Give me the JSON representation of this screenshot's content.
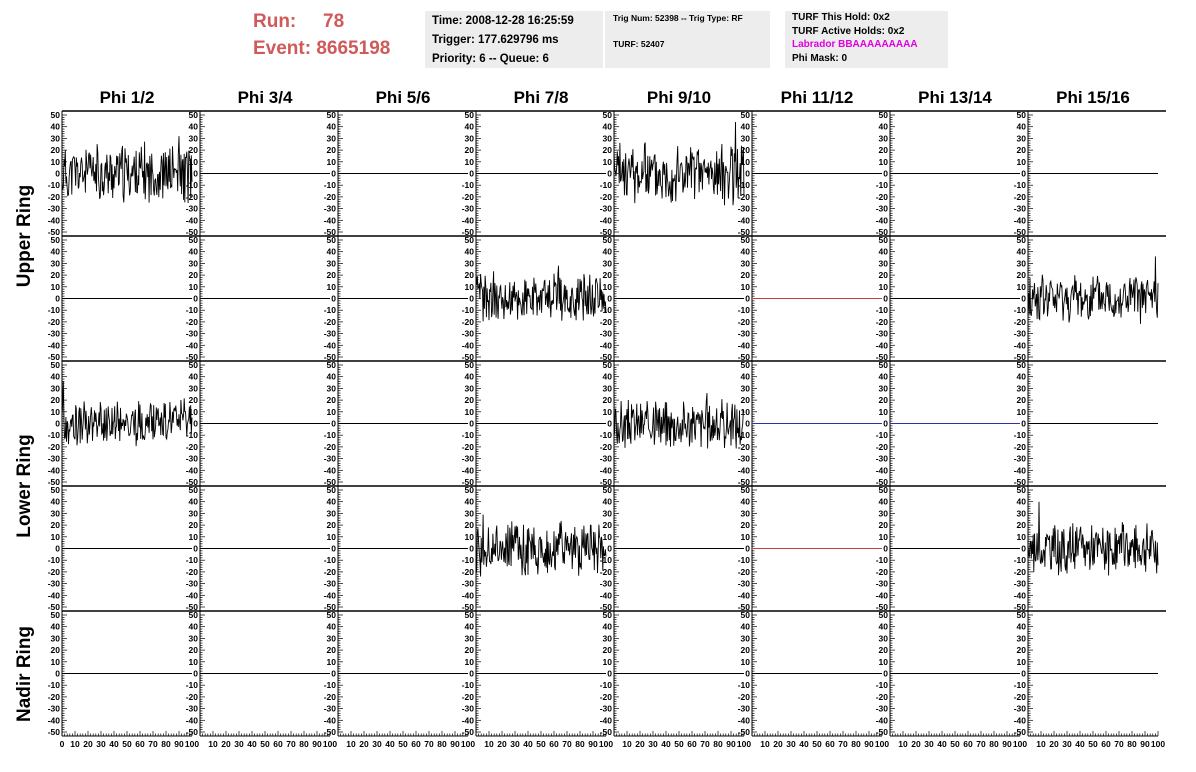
{
  "header": {
    "run_label": "Run:",
    "run_value": "78",
    "event_label": "Event:",
    "event_value": "8665198",
    "time": "Time: 2008-12-28 16:25:59",
    "trigger": "Trigger: 177.629796 ms",
    "priority": "Priority: 6 -- Queue: 6",
    "trig_num": "Trig Num: 52398 -- Trig Type: RF",
    "turf": "TURF: 52407",
    "turf_this_hold": "TURF This Hold: 0x2",
    "turf_active_holds": "TURF Active Holds: 0x2",
    "labrador": "Labrador BBAAAAAAAAA",
    "phi_mask": "Phi Mask: 0",
    "run_color": "#d05a5a",
    "labrador_color": "#e000e0"
  },
  "columns": [
    "Phi 1/2",
    "Phi 3/4",
    "Phi 5/6",
    "Phi 7/8",
    "Phi 9/10",
    "Phi 11/12",
    "Phi 13/14",
    "Phi 15/16"
  ],
  "ring_labels": [
    "Upper Ring",
    "Lower Ring",
    "Nadir Ring"
  ],
  "chart_data": {
    "type": "line",
    "description_rows": [
      "upper-a",
      "upper-b",
      "lower-a",
      "lower-b",
      "nadir"
    ],
    "xlim": [
      0,
      100
    ],
    "ylim": [
      -50,
      50
    ],
    "x_ticks": [
      0,
      10,
      20,
      30,
      40,
      50,
      60,
      70,
      80,
      90,
      100
    ],
    "x_tick_labels": [
      "0",
      "10",
      "20",
      "30",
      "40",
      "50",
      "60",
      "70",
      "80",
      "90",
      "100"
    ],
    "y_ticks": [
      -50,
      -40,
      -30,
      -20,
      -10,
      0,
      10,
      20,
      30,
      40,
      50
    ],
    "y_tick_labels": [
      "-50",
      "-40",
      "-30",
      "-20",
      "-10",
      "0",
      "10",
      "20",
      "30",
      "40",
      "50"
    ],
    "flat_line_colors": {
      "upper-b|5": "#c04040",
      "lower-a|5": "#3030a0",
      "lower-a|6": "#3030a0",
      "lower-b|5": "#c04040"
    },
    "active_traces": [
      {
        "row": 0,
        "col": 0,
        "amplitude": 28,
        "peak": 32,
        "seed": 11
      },
      {
        "row": 0,
        "col": 4,
        "amplitude": 30,
        "peak": 44,
        "seed": 23
      },
      {
        "row": 1,
        "col": 3,
        "amplitude": 24,
        "peak": 28,
        "seed": 37
      },
      {
        "row": 1,
        "col": 7,
        "amplitude": 24,
        "peak": 36,
        "seed": 41
      },
      {
        "row": 2,
        "col": 0,
        "amplitude": 22,
        "peak": 36,
        "seed": 53
      },
      {
        "row": 2,
        "col": 4,
        "amplitude": 24,
        "peak": 26,
        "seed": 67
      },
      {
        "row": 3,
        "col": 3,
        "amplitude": 26,
        "peak": 29,
        "seed": 71
      },
      {
        "row": 3,
        "col": 7,
        "amplitude": 24,
        "peak": 40,
        "seed": 83
      }
    ]
  }
}
